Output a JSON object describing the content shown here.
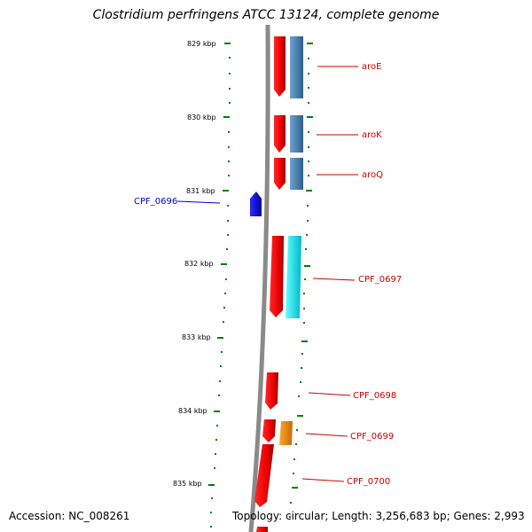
{
  "title": "Clostridium perfringens ATCC 13124, complete genome",
  "footer": {
    "accession": "Accession: NC_008261",
    "topology": "Topology: circular; Length: 3,256,683 bp; Genes: 2,993"
  },
  "scale_labels": [
    "829 kbp",
    "830 kbp",
    "831 kbp",
    "832 kbp",
    "833 kbp",
    "834 kbp",
    "835 kbp"
  ],
  "genes": [
    {
      "name": "aroE",
      "strand": "forward",
      "color": "#cc0000"
    },
    {
      "name": "aroK",
      "strand": "forward",
      "color": "#cc0000"
    },
    {
      "name": "aroQ",
      "strand": "forward",
      "color": "#cc0000"
    },
    {
      "name": "CPF_0696",
      "strand": "reverse",
      "color": "#0000cc"
    },
    {
      "name": "CPF_0697",
      "strand": "forward",
      "color": "#cc0000"
    },
    {
      "name": "CPF_0698",
      "strand": "forward",
      "color": "#cc0000"
    },
    {
      "name": "CPF_0699",
      "strand": "forward",
      "color": "#cc0000"
    },
    {
      "name": "CPF_0700",
      "strand": "forward",
      "color": "#cc0000"
    }
  ],
  "colors": {
    "backbone": "#888888",
    "forward_gene": "#ff0000",
    "reverse_gene": "#0000ff",
    "cog_blue": "#4682b4",
    "cog_cyan": "#00e5ee",
    "cog_orange": "#ff8c00",
    "ruler": "#008000"
  }
}
